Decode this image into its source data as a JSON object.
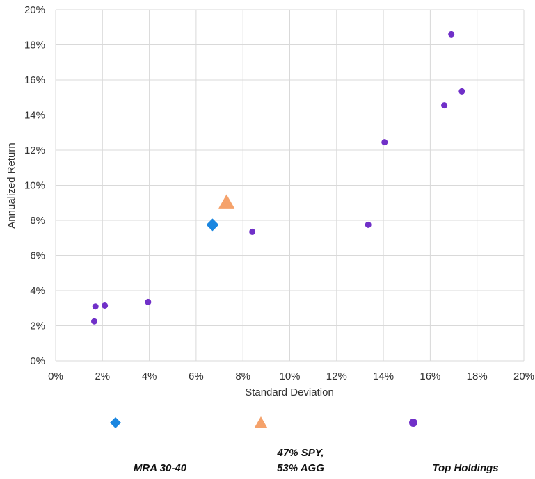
{
  "chart_data": {
    "type": "scatter",
    "title": "",
    "xlabel": "Standard Deviation",
    "ylabel": "Annualized Return",
    "xlim": [
      0,
      20
    ],
    "ylim": [
      0,
      20
    ],
    "xticks": [
      "0%",
      "2%",
      "4%",
      "6%",
      "8%",
      "10%",
      "12%",
      "14%",
      "16%",
      "18%",
      "20%"
    ],
    "yticks": [
      "0%",
      "2%",
      "4%",
      "6%",
      "8%",
      "10%",
      "12%",
      "14%",
      "16%",
      "18%",
      "20%"
    ],
    "grid": true,
    "legend_position": "bottom",
    "series": [
      {
        "name": "MRA 30-40",
        "marker": "diamond",
        "color": "#1a86e0",
        "points": [
          {
            "x": 6.7,
            "y": 7.75
          }
        ]
      },
      {
        "name": "47% SPY, 53% AGG",
        "marker": "triangle",
        "color": "#f5a26b",
        "points": [
          {
            "x": 7.3,
            "y": 9.05
          }
        ]
      },
      {
        "name": "Top Holdings",
        "marker": "circle",
        "color": "#7030c8",
        "points": [
          {
            "x": 1.65,
            "y": 2.25
          },
          {
            "x": 1.7,
            "y": 3.1
          },
          {
            "x": 2.1,
            "y": 3.15
          },
          {
            "x": 3.95,
            "y": 3.35
          },
          {
            "x": 8.4,
            "y": 7.35
          },
          {
            "x": 13.35,
            "y": 7.75
          },
          {
            "x": 14.05,
            "y": 12.45
          },
          {
            "x": 16.6,
            "y": 14.55
          },
          {
            "x": 17.35,
            "y": 15.35
          },
          {
            "x": 16.9,
            "y": 18.6
          }
        ]
      }
    ]
  }
}
